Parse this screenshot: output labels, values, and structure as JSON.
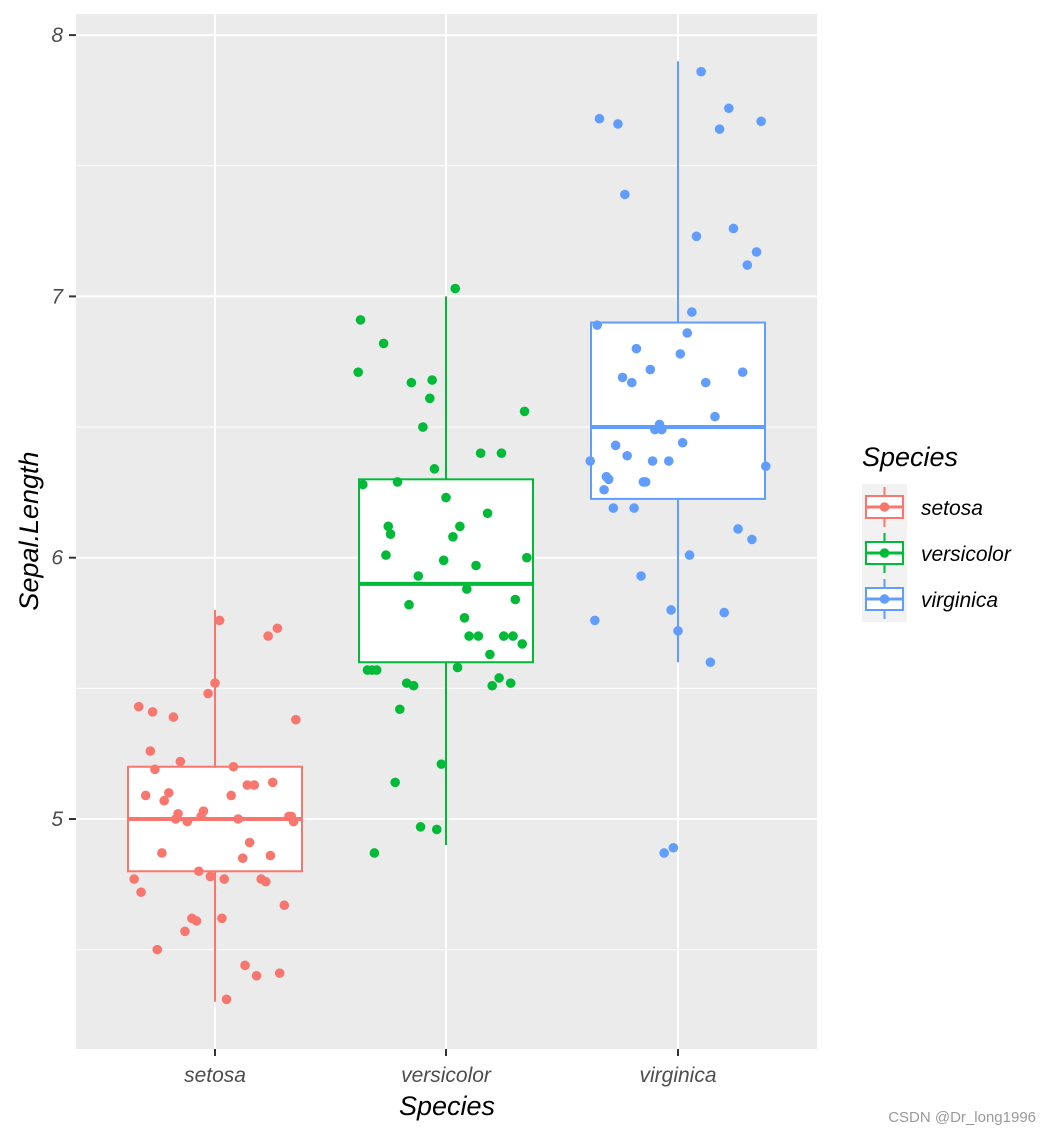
{
  "chart_data": {
    "type": "boxplot",
    "xlabel": "Species",
    "ylabel": "Sepal.Length",
    "categories": [
      "setosa",
      "versicolor",
      "virginica"
    ],
    "ylim": [
      4.1,
      8.15
    ],
    "yticks": [
      5,
      6,
      7,
      8
    ],
    "grid": true,
    "legend": {
      "title": "Species",
      "position": "right"
    },
    "colors": {
      "setosa": "#F8766D",
      "versicolor": "#00BA38",
      "virginica": "#619CFF",
      "panel": "#EBEBEB",
      "grid": "#FFFFFF"
    },
    "boxes": [
      {
        "name": "setosa",
        "whisker_low": 4.3,
        "q1": 4.8,
        "median": 5.0,
        "q3": 5.2,
        "whisker_high": 5.8
      },
      {
        "name": "versicolor",
        "whisker_low": 4.9,
        "q1": 5.6,
        "median": 5.9,
        "q3": 6.3,
        "whisker_high": 7.0
      },
      {
        "name": "virginica",
        "whisker_low": 5.6,
        "q1": 6.225,
        "median": 6.5,
        "q3": 6.9,
        "whisker_high": 7.9
      }
    ],
    "points": [
      {
        "name": "setosa",
        "x": [
          -0.35,
          -0.3,
          -0.25,
          -0.2,
          -0.15,
          -0.1,
          -0.05,
          0.0,
          0.05,
          0.1,
          0.15,
          0.2,
          0.25,
          0.3,
          0.35,
          -0.32,
          -0.27,
          -0.22,
          -0.17,
          -0.12,
          -0.07,
          -0.02,
          0.03,
          0.08,
          0.13,
          0.18,
          0.23,
          0.28,
          0.33,
          -0.33,
          -0.28,
          -0.23,
          -0.18,
          -0.13,
          -0.08,
          -0.03,
          0.02,
          0.07,
          0.12,
          0.17,
          0.22,
          0.27,
          0.32,
          -0.26,
          -0.16,
          -0.06,
          0.04,
          0.14,
          0.24,
          0.34
        ],
        "y": [
          4.77,
          5.09,
          4.5,
          5.1,
          5.22,
          4.62,
          5.03,
          5.52,
          4.31,
          5.0,
          4.91,
          4.77,
          5.14,
          4.67,
          5.38,
          4.72,
          5.41,
          5.07,
          5.0,
          4.99,
          4.8,
          4.78,
          4.62,
          5.2,
          4.44,
          4.4,
          5.7,
          4.41,
          5.01,
          5.43,
          5.26,
          4.87,
          5.39,
          4.57,
          4.61,
          5.48,
          5.76,
          5.09,
          4.85,
          5.13,
          4.76,
          5.73,
          5.01,
          5.19,
          5.02,
          5.01,
          4.77,
          5.13,
          4.86,
          4.99
        ]
      },
      {
        "name": "versicolor",
        "x": [
          -0.38,
          -0.3,
          -0.25,
          -0.2,
          -0.15,
          -0.1,
          -0.05,
          0.0,
          0.05,
          0.1,
          0.15,
          0.2,
          0.25,
          0.3,
          0.35,
          -0.37,
          -0.32,
          -0.27,
          -0.22,
          -0.17,
          -0.12,
          -0.07,
          -0.02,
          0.03,
          0.08,
          0.13,
          0.18,
          0.23,
          0.28,
          0.33,
          -0.36,
          -0.31,
          -0.26,
          -0.21,
          -0.16,
          -0.11,
          -0.06,
          -0.01,
          0.04,
          0.09,
          0.14,
          0.19,
          0.24,
          0.29,
          0.34,
          -0.34,
          -0.24,
          -0.14,
          -0.04,
          0.06
        ],
        "y": [
          6.71,
          5.57,
          6.12,
          5.42,
          6.67,
          6.5,
          6.34,
          6.23,
          5.58,
          5.7,
          6.4,
          5.51,
          5.7,
          5.84,
          6.0,
          6.91,
          5.57,
          6.82,
          5.14,
          5.52,
          5.93,
          6.61,
          5.21,
          6.08,
          5.77,
          5.97,
          6.17,
          5.54,
          5.52,
          5.67,
          6.28,
          4.87,
          6.01,
          6.29,
          5.82,
          4.97,
          6.68,
          5.99,
          7.03,
          5.88,
          5.7,
          5.63,
          6.4,
          5.7,
          6.56,
          5.57,
          6.09,
          5.51,
          4.96,
          6.12
        ]
      },
      {
        "name": "virginica",
        "x": [
          -0.38,
          -0.34,
          -0.3,
          -0.26,
          -0.22,
          -0.18,
          -0.14,
          -0.1,
          -0.06,
          -0.02,
          0.02,
          0.06,
          0.1,
          0.14,
          0.18,
          0.22,
          0.26,
          0.3,
          0.34,
          0.38,
          -0.36,
          -0.32,
          -0.28,
          -0.24,
          -0.2,
          -0.16,
          -0.12,
          -0.08,
          -0.04,
          0.0,
          0.04,
          0.08,
          0.12,
          0.16,
          0.2,
          0.24,
          0.28,
          0.32,
          0.36,
          -0.35,
          -0.31,
          -0.27,
          -0.23,
          -0.19,
          -0.15,
          -0.11,
          -0.07,
          -0.03,
          0.01,
          0.05
        ],
        "y": [
          6.37,
          7.68,
          6.3,
          7.66,
          6.39,
          6.8,
          6.29,
          6.49,
          4.87,
          4.89,
          6.44,
          6.94,
          7.86,
          5.6,
          7.64,
          7.72,
          6.11,
          7.12,
          7.17,
          6.35,
          5.76,
          6.26,
          6.19,
          6.69,
          6.67,
          5.93,
          6.72,
          6.51,
          6.37,
          5.72,
          6.86,
          7.23,
          6.67,
          6.54,
          5.79,
          7.26,
          6.71,
          6.07,
          7.67,
          6.89,
          6.31,
          6.43,
          7.39,
          6.19,
          6.29,
          6.37,
          6.49,
          5.8,
          6.78,
          6.01
        ]
      }
    ]
  },
  "watermark": "CSDN @Dr_long1996"
}
